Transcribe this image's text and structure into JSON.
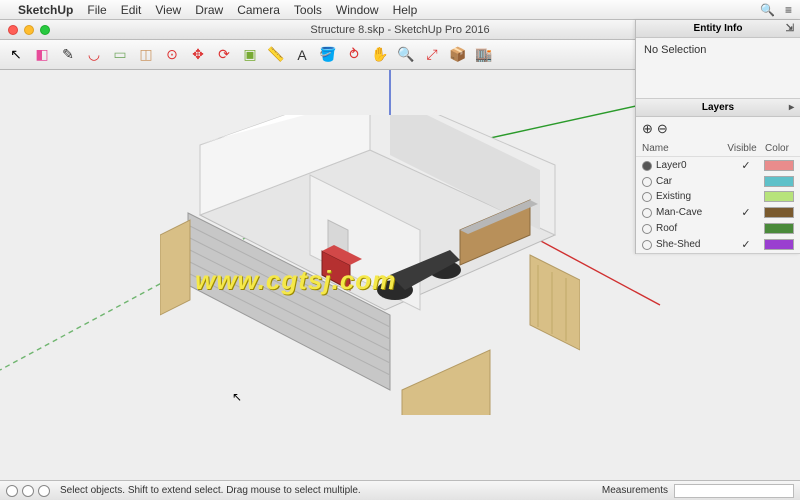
{
  "mac_menu": {
    "app_name": "SketchUp",
    "items": [
      "File",
      "Edit",
      "View",
      "Draw",
      "Camera",
      "Tools",
      "Window",
      "Help"
    ],
    "right_icons": [
      "search-icon",
      "menu-icon"
    ]
  },
  "window": {
    "title": "Structure 8.skp - SketchUp Pro 2016"
  },
  "toolbar_icons": [
    {
      "name": "select-arrow",
      "glyph": "↖",
      "color": "#000"
    },
    {
      "name": "eraser",
      "glyph": "◧",
      "color": "#e74c9a"
    },
    {
      "name": "pencil",
      "glyph": "✎",
      "color": "#333"
    },
    {
      "name": "arc",
      "glyph": "◡",
      "color": "#d33"
    },
    {
      "name": "rectangle",
      "glyph": "▭",
      "color": "#7a6"
    },
    {
      "name": "push-pull",
      "glyph": "◫",
      "color": "#c96"
    },
    {
      "name": "offset",
      "glyph": "⊙",
      "color": "#d33"
    },
    {
      "name": "move",
      "glyph": "✥",
      "color": "#d33"
    },
    {
      "name": "rotate",
      "glyph": "⟳",
      "color": "#d33"
    },
    {
      "name": "scale",
      "glyph": "▣",
      "color": "#7a3"
    },
    {
      "name": "tape",
      "glyph": "📏",
      "color": "#e0c040"
    },
    {
      "name": "text",
      "glyph": "A",
      "color": "#333"
    },
    {
      "name": "paint",
      "glyph": "🪣",
      "color": "#c96"
    },
    {
      "name": "orbit",
      "glyph": "⥁",
      "color": "#d33"
    },
    {
      "name": "pan",
      "glyph": "✋",
      "color": "#4a4"
    },
    {
      "name": "zoom",
      "glyph": "🔍",
      "color": "#333"
    },
    {
      "name": "zoom-extents",
      "glyph": "⤢",
      "color": "#d33"
    },
    {
      "name": "components",
      "glyph": "📦",
      "color": "#c33"
    },
    {
      "name": "warehouse",
      "glyph": "🏬",
      "color": "#c33"
    }
  ],
  "panels": {
    "entity_info": {
      "title": "Entity Info",
      "content": "No Selection"
    },
    "layers": {
      "title": "Layers",
      "columns": [
        "Name",
        "Visible",
        "Color"
      ],
      "rows": [
        {
          "name": "Layer0",
          "visible": true,
          "color": "#e98c8c",
          "active": true
        },
        {
          "name": "Car",
          "visible": false,
          "color": "#5fc1c9",
          "active": false
        },
        {
          "name": "Existing",
          "visible": false,
          "color": "#b7e37b",
          "active": false
        },
        {
          "name": "Man-Cave",
          "visible": true,
          "color": "#7a5a2e",
          "active": false
        },
        {
          "name": "Roof",
          "visible": false,
          "color": "#4a8a3a",
          "active": false
        },
        {
          "name": "She-Shed",
          "visible": true,
          "color": "#9a3fd0",
          "active": false
        }
      ]
    }
  },
  "status": {
    "hint": "Select objects. Shift to extend select. Drag mouse to select multiple.",
    "measurements_label": "Measurements"
  },
  "axes": {
    "x_color": "#d03030",
    "y_color": "#2a9a2a",
    "z_color": "#3a5acc"
  },
  "watermark": "www.cgtsj.com",
  "model_colors": {
    "wall": "#f5f5f5",
    "wall_shadow": "#cfcfcf",
    "wood": "#d8bf86",
    "wood_dark": "#c0a968",
    "floor": "#e6e6e6",
    "counter": "#b8905a",
    "counter_top": "#b7b7b7",
    "toolbox": "#b53030",
    "tire": "#2a2a2a",
    "siding": "#c7c7c7"
  }
}
